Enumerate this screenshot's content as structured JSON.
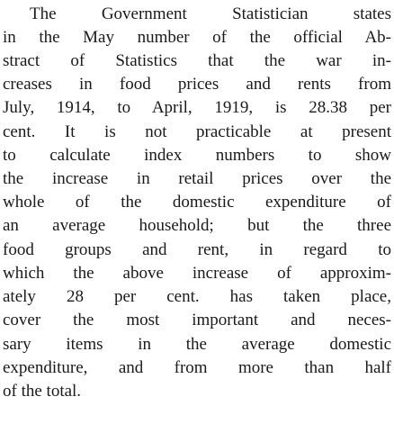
{
  "paragraph": {
    "lines": [
      "The Government Statistician states",
      "in the May number of the official Ab-",
      "stract of Statistics that the war in-",
      "creases in food prices and rents from",
      "July, 1914, to April, 1919, is 28.38 per",
      "cent. It is not practicable at present",
      "to calculate index numbers to show",
      "the increase in retail prices over the",
      "whole of the domestic expenditure of",
      "an average household; but the three",
      "food groups and rent, in regard to",
      "which the above increase of approxim-",
      "ately 28 per cent. has taken place,",
      "cover the most important and neces-",
      "sary items in the average domestic",
      "expenditure, and from more than half",
      "of the total."
    ]
  }
}
